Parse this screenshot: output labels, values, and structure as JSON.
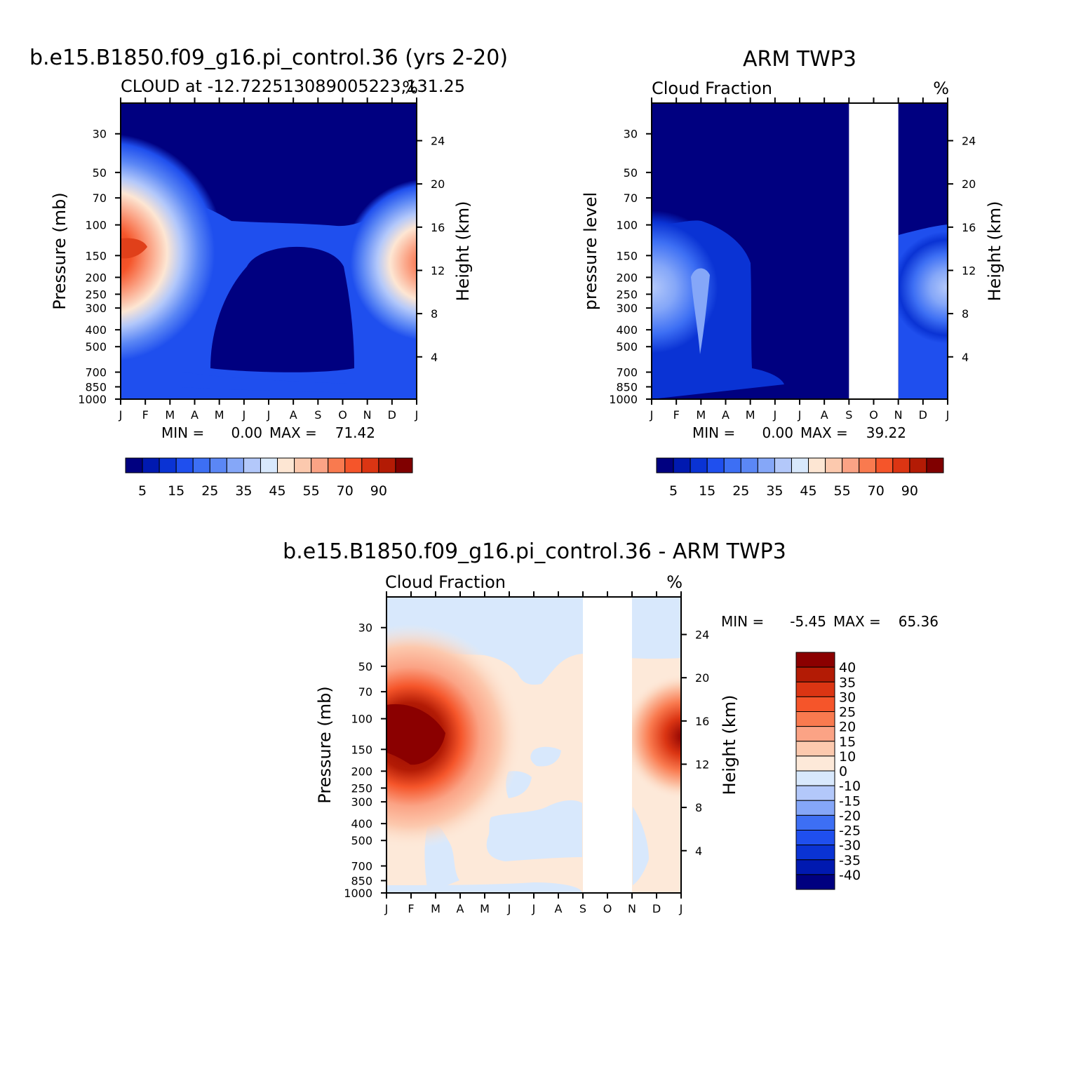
{
  "chart_data": [
    {
      "id": "model",
      "type": "heatmap",
      "title": "b.e15.B1850.f09_g16.pi_control.36 (yrs 2-20)",
      "subtitle": "CLOUD at -12.722513089005223,131.25",
      "units": "%",
      "xlabel": "",
      "ylabel": "Pressure (mb)",
      "ylabel_right": "Height (km)",
      "x_ticks": [
        "J",
        "F",
        "M",
        "A",
        "M",
        "J",
        "J",
        "A",
        "S",
        "O",
        "N",
        "D",
        "J"
      ],
      "y_ticks": [
        30,
        50,
        70,
        100,
        150,
        200,
        250,
        300,
        400,
        500,
        700,
        850,
        1000
      ],
      "height_ticks": [
        24,
        20,
        16,
        12,
        8,
        4
      ],
      "ylim": [
        1000,
        20
      ],
      "min_label": "MIN =",
      "min_value": "0.00",
      "max_label": "MAX =",
      "max_value": "71.42",
      "features": [
        {
          "month": 0.6,
          "pressure": 180,
          "value": 71
        },
        {
          "month": 11.7,
          "pressure": 180,
          "value": 65
        },
        {
          "month": 0.3,
          "pressure": 550,
          "value": 20
        },
        {
          "month": 5.5,
          "pressure": 120,
          "value": 12
        },
        {
          "month": 5.5,
          "pressure": 950,
          "value": 15
        }
      ]
    },
    {
      "id": "obs",
      "type": "heatmap",
      "title": "ARM TWP3",
      "subtitle": "Cloud Fraction",
      "units": "%",
      "xlabel": "",
      "ylabel": "pressure level",
      "ylabel_right": "Height (km)",
      "x_ticks": [
        "J",
        "F",
        "M",
        "A",
        "M",
        "J",
        "J",
        "A",
        "S",
        "O",
        "N",
        "D",
        "J"
      ],
      "y_ticks": [
        30,
        50,
        70,
        100,
        150,
        200,
        250,
        300,
        400,
        500,
        700,
        850,
        1000
      ],
      "height_ticks": [
        24,
        20,
        16,
        12,
        8,
        4
      ],
      "ylim": [
        1000,
        20
      ],
      "missing_months": [
        8,
        10
      ],
      "min_label": "MIN =",
      "min_value": "0.00",
      "max_label": "MAX =",
      "max_value": "39.22",
      "features": [
        {
          "month": 0.2,
          "pressure": 260,
          "value": 39
        },
        {
          "month": 2.0,
          "pressure": 300,
          "value": 34
        },
        {
          "month": 11.8,
          "pressure": 280,
          "value": 38
        },
        {
          "month": 1.2,
          "pressure": 700,
          "value": 18
        }
      ]
    },
    {
      "id": "diff",
      "type": "heatmap",
      "title": "b.e15.B1850.f09_g16.pi_control.36 - ARM TWP3",
      "subtitle": "Cloud Fraction",
      "units": "%",
      "xlabel": "",
      "ylabel": "Pressure (mb)",
      "ylabel_right": "Height (km)",
      "x_ticks": [
        "J",
        "F",
        "M",
        "A",
        "M",
        "J",
        "J",
        "A",
        "S",
        "O",
        "N",
        "D",
        "J"
      ],
      "y_ticks": [
        30,
        50,
        70,
        100,
        150,
        200,
        250,
        300,
        400,
        500,
        700,
        850,
        1000
      ],
      "height_ticks": [
        24,
        20,
        16,
        12,
        8,
        4
      ],
      "ylim": [
        1000,
        20
      ],
      "missing_months": [
        8,
        10
      ],
      "min_label": "MIN =",
      "min_value": "-5.45",
      "max_label": "MAX =",
      "max_value": "65.36",
      "features": [
        {
          "month": 0.6,
          "pressure": 150,
          "value": 65
        },
        {
          "month": 11.8,
          "pressure": 150,
          "value": 45
        },
        {
          "month": 5.0,
          "pressure": 30,
          "value": -3
        },
        {
          "month": 5.0,
          "pressure": 450,
          "value": -3
        }
      ]
    }
  ],
  "colorbars": {
    "abs": {
      "colors": [
        "#000080",
        "#0019b0",
        "#0a33d4",
        "#1f4fee",
        "#3d6ff4",
        "#5b87f5",
        "#85a7f8",
        "#b3c8fa",
        "#d8e8fc",
        "#fde6d3",
        "#fcc9ae",
        "#fba385",
        "#f97a4f",
        "#f5552a",
        "#db3513",
        "#b31b05",
        "#800000"
      ],
      "labels": [
        "5",
        "15",
        "25",
        "35",
        "45",
        "55",
        "70",
        "90"
      ]
    },
    "diff": {
      "colors": [
        "#000080",
        "#0019b0",
        "#0a33d4",
        "#1f4fee",
        "#3d6ff4",
        "#85a7f8",
        "#b3c8fa",
        "#d8e8fc",
        "#fde9d9",
        "#fcc9ae",
        "#fba385",
        "#f97a4f",
        "#f5552a",
        "#db3513",
        "#b31b05",
        "#8b0000"
      ],
      "labels": [
        "40",
        "35",
        "30",
        "25",
        "20",
        "15",
        "10",
        "0",
        "-10",
        "-15",
        "-20",
        "-25",
        "-30",
        "-35",
        "-40"
      ]
    }
  }
}
